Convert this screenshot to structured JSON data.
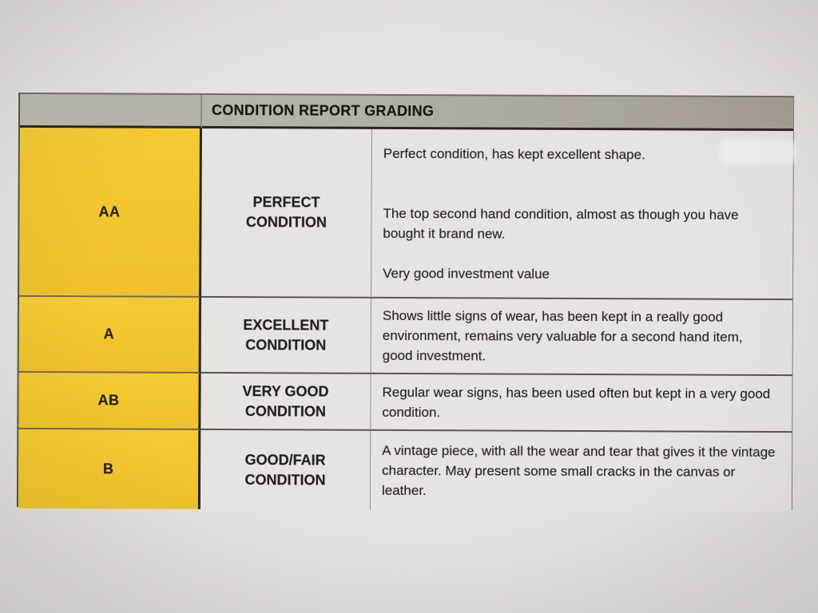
{
  "document": {
    "header": {
      "title": "CONDITION REPORT GRADING"
    },
    "rows": [
      {
        "grade": "AA",
        "condition": "PERFECT\nCONDITION",
        "description": "Perfect condition, has kept excellent shape.\n\n\nThe top second hand condition, almost as though you have bought it brand new.\n\nVery good investment value"
      },
      {
        "grade": "A",
        "condition": "EXCELLENT\nCONDITION",
        "description": "Shows little signs of wear, has been kept in a really good environment, remains very valuable for a second hand item, good investment."
      },
      {
        "grade": "AB",
        "condition": "VERY GOOD\nCONDITION",
        "description": "Regular wear signs, has been used often but kept in a very good condition."
      },
      {
        "grade": "B",
        "condition": "GOOD/FAIR\nCONDITION",
        "description": "A vintage piece, with all the wear and tear that gives it the vintage character. May present some small cracks in the canvas or leather."
      }
    ],
    "colors": {
      "grade_yellow": "#F2C72E",
      "header_gray": "#B4B0A9",
      "cell_background": "#E6E4E1",
      "paper": "#E4E2DF",
      "ink": "#221F1A"
    }
  }
}
